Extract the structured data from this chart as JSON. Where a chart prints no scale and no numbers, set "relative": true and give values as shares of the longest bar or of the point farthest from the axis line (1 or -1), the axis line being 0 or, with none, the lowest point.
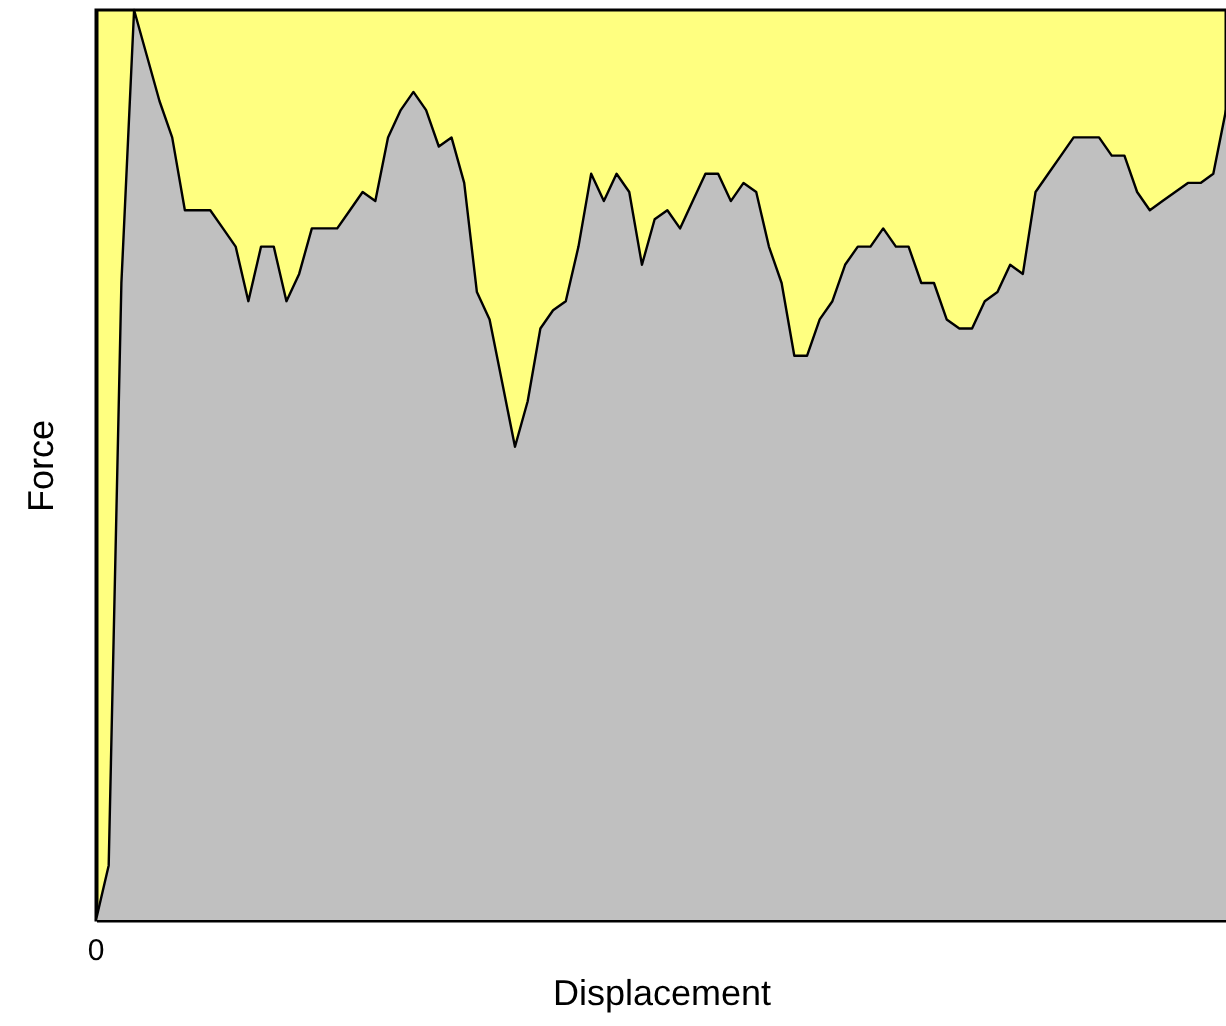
{
  "chart_data": {
    "type": "area",
    "xlabel": "Displacement",
    "ylabel": "Force",
    "relative": true,
    "tick_labels": false,
    "grid": false,
    "annotations": [
      "0"
    ],
    "categories": [
      null,
      null,
      null,
      null,
      null,
      null,
      null,
      null,
      null,
      null,
      null,
      null,
      null,
      null,
      null,
      null,
      null,
      null,
      null,
      null,
      null,
      null,
      null,
      null,
      null,
      null,
      null,
      null,
      null,
      null,
      null,
      null,
      null,
      null,
      null,
      null,
      null,
      null,
      null,
      null,
      null,
      null,
      null,
      null,
      null,
      null,
      null,
      null,
      null,
      null,
      null,
      null,
      null,
      null,
      null,
      null,
      null,
      null,
      null,
      null,
      null,
      null,
      null,
      null,
      null,
      null,
      null,
      null,
      null,
      null,
      null,
      null,
      null,
      null,
      null,
      null,
      null,
      null,
      null,
      null,
      null,
      null,
      null,
      null,
      null,
      null,
      null,
      null,
      null,
      null
    ],
    "series": [
      {
        "color": "#c0c0c0",
        "values": [
          0,
          0.06,
          0.7,
          1.0,
          0.95,
          0.9,
          0.86,
          0.78,
          0.78,
          0.78,
          0.76,
          0.74,
          0.68,
          0.74,
          0.74,
          0.68,
          0.71,
          0.76,
          0.76,
          0.76,
          0.78,
          0.8,
          0.79,
          0.86,
          0.89,
          0.91,
          0.89,
          0.85,
          0.86,
          0.81,
          0.69,
          0.66,
          0.59,
          0.52,
          0.57,
          0.65,
          0.67,
          0.68,
          0.74,
          0.82,
          0.79,
          0.82,
          0.8,
          0.72,
          0.77,
          0.78,
          0.76,
          0.79,
          0.82,
          0.82,
          0.79,
          0.81,
          0.8,
          0.74,
          0.7,
          0.62,
          0.62,
          0.66,
          0.68,
          0.72,
          0.74,
          0.74,
          0.76,
          0.74,
          0.74,
          0.7,
          0.7,
          0.66,
          0.65,
          0.65,
          0.68,
          0.69,
          0.72,
          0.71,
          0.8,
          0.82,
          0.84,
          0.86,
          0.86,
          0.86,
          0.84,
          0.84,
          0.8,
          0.78,
          0.79,
          0.8,
          0.81,
          0.81,
          0.82,
          0.89
        ]
      }
    ]
  }
}
